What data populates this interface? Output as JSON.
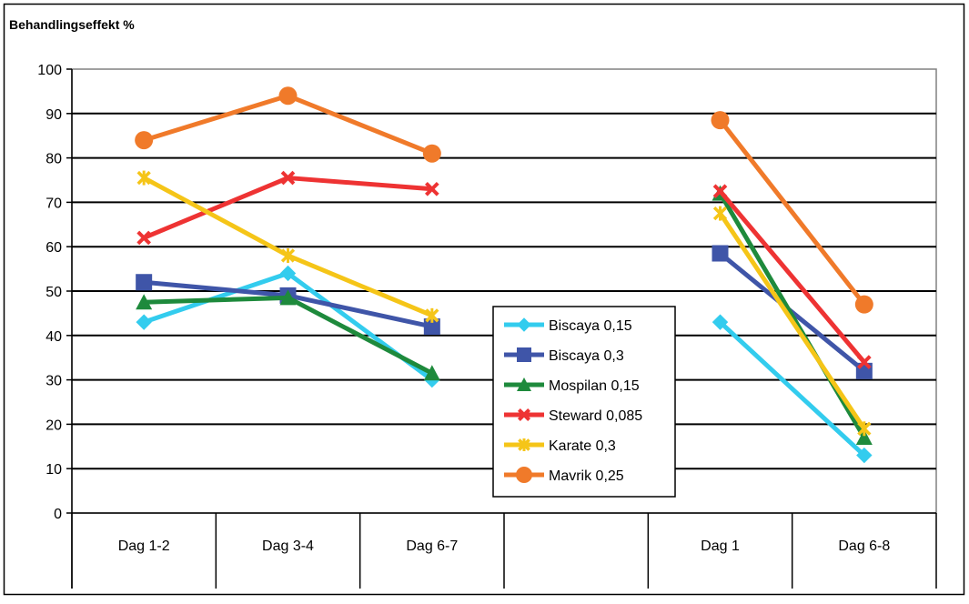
{
  "chart_data": {
    "type": "line",
    "ylabel": "Behandlingseffekt %",
    "ylim": [
      0,
      100
    ],
    "yticks": [
      0,
      10,
      20,
      30,
      40,
      50,
      60,
      70,
      80,
      90,
      100
    ],
    "categories": [
      "Dag 1-2",
      "Dag 3-4",
      "Dag 6-7",
      "",
      "Dag 1",
      "Dag 6-8"
    ],
    "grid": true,
    "legend_position": "center-right",
    "series": [
      {
        "name": "Biscaya 0,15",
        "color": "#33CCEE",
        "marker": "diamond",
        "values": [
          43,
          54,
          30,
          null,
          43,
          13
        ]
      },
      {
        "name": "Biscaya 0,3",
        "color": "#3F55A8",
        "marker": "square",
        "values": [
          52,
          49,
          42,
          null,
          58.5,
          32
        ]
      },
      {
        "name": "Mospilan 0,15",
        "color": "#1E8A3C",
        "marker": "triangle",
        "values": [
          47.5,
          48.5,
          31.5,
          null,
          72,
          17
        ]
      },
      {
        "name": "Steward 0,085",
        "color": "#EE3333",
        "marker": "x",
        "values": [
          62,
          75.5,
          73,
          null,
          72.5,
          34
        ]
      },
      {
        "name": "Karate 0,3",
        "color": "#F5C518",
        "marker": "star",
        "values": [
          75.5,
          58,
          44.5,
          null,
          67.5,
          19
        ]
      },
      {
        "name": "Mavrik 0,25",
        "color": "#F07A2A",
        "marker": "circle",
        "values": [
          84,
          94,
          81,
          null,
          88.5,
          47
        ]
      }
    ]
  }
}
